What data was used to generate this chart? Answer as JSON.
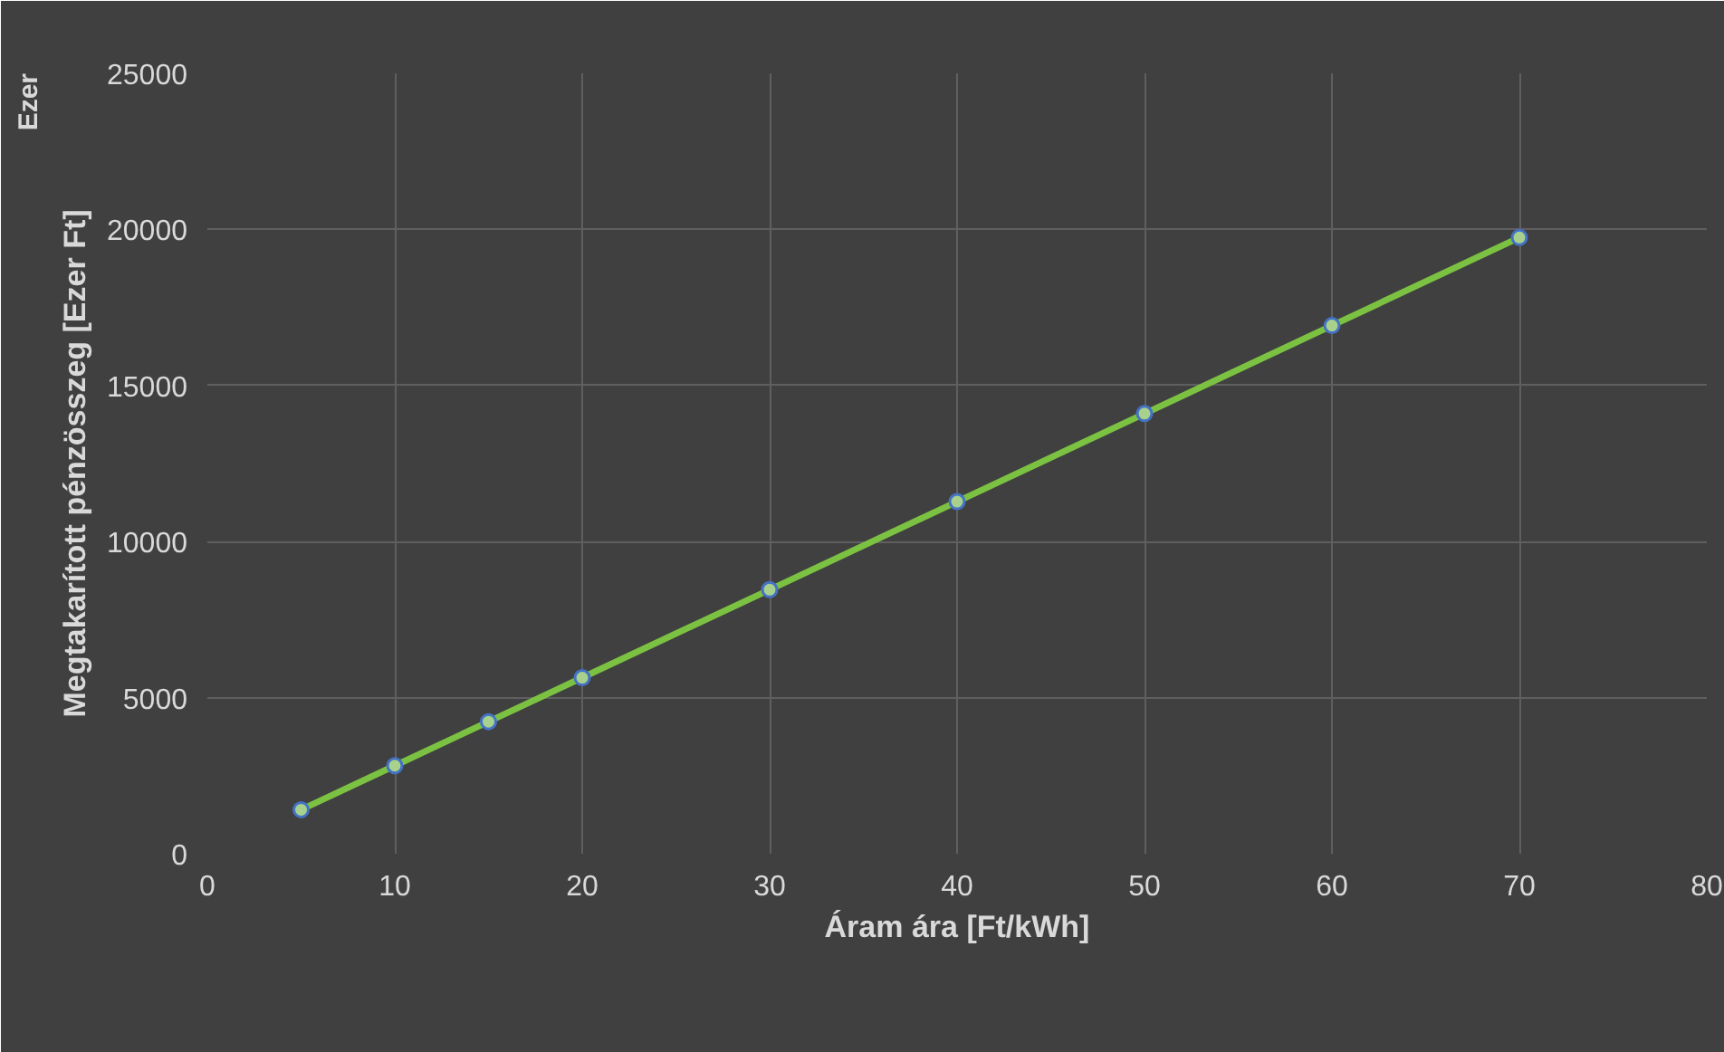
{
  "chart_data": {
    "type": "line",
    "xlabel": "Áram ára [Ft/kWh]",
    "ylabel": "Megtakarított pénzösszeg [Ezer Ft]",
    "annotations": [
      "Ezer"
    ],
    "x": [
      5,
      10,
      15,
      20,
      30,
      40,
      50,
      60,
      70
    ],
    "series": [
      {
        "color": "#7cc242",
        "values": [
          1410,
          2820,
          4230,
          5640,
          8460,
          11280,
          14100,
          16920,
          19740
        ]
      }
    ],
    "xlim": [
      0,
      80
    ],
    "xticks": [
      0,
      10,
      20,
      30,
      40,
      50,
      60,
      70,
      80
    ],
    "ylim": [
      0,
      25000
    ],
    "yticks": [
      0,
      5000,
      10000,
      15000,
      20000,
      25000
    ],
    "grid": true,
    "marker": "circle",
    "line_style": "solid"
  }
}
